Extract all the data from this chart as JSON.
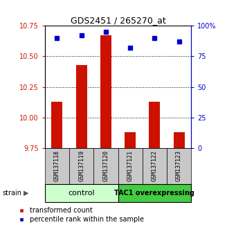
{
  "title": "GDS2451 / 265270_at",
  "samples": [
    "GSM137118",
    "GSM137119",
    "GSM137120",
    "GSM137121",
    "GSM137122",
    "GSM137123"
  ],
  "red_values": [
    10.13,
    10.43,
    10.67,
    9.88,
    10.13,
    9.88
  ],
  "blue_values": [
    90,
    92,
    95,
    82,
    90,
    87
  ],
  "ylim_left": [
    9.75,
    10.75
  ],
  "ylim_right": [
    0,
    100
  ],
  "yticks_left": [
    9.75,
    10.0,
    10.25,
    10.5,
    10.75
  ],
  "yticks_right": [
    0,
    25,
    50,
    75,
    100
  ],
  "bar_color": "#cc1100",
  "dot_color": "#0000cc",
  "control_label": "control",
  "tac1_label": "TAC1 overexpressing",
  "group_label": "strain",
  "legend_red": "transformed count",
  "legend_blue": "percentile rank within the sample",
  "control_bg": "#ccffcc",
  "tac1_bg": "#44cc44",
  "sample_bg": "#c8c8c8",
  "bar_bottom": 9.75,
  "right_axis_color": "#0000cc",
  "left_axis_color": "#cc1100",
  "grid_ticks": [
    10.0,
    10.25,
    10.5
  ],
  "title_fontsize": 9,
  "tick_fontsize": 7,
  "sample_fontsize": 6,
  "group_fontsize": 8,
  "legend_fontsize": 7
}
